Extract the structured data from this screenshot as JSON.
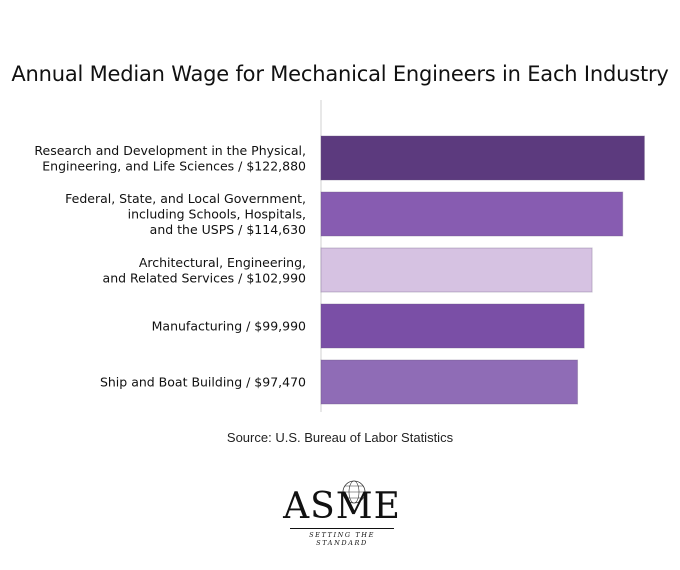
{
  "chart_data": {
    "type": "bar",
    "orientation": "horizontal",
    "title": "Annual Median Wage for Mechanical Engineers in Each Industry",
    "categories": [
      [
        "Research and Development in the Physical,",
        "Engineering, and Life Sciences / $122,880"
      ],
      [
        "Federal, State, and Local Government,",
        "including Schools, Hospitals,",
        "and the USPS / $114,630"
      ],
      [
        "Architectural, Engineering,",
        "and Related Services / $102,990"
      ],
      [
        "Manufacturing / $99,990"
      ],
      [
        "Ship and Boat Building / $97,470"
      ]
    ],
    "values": [
      122880,
      114630,
      102990,
      99990,
      97470
    ],
    "bar_colors": [
      "#5c3a7e",
      "#875cb1",
      "#d6c2e2",
      "#7a4fa6",
      "#8f6cb6"
    ],
    "xlim": [
      0,
      125000
    ],
    "grid": false,
    "legend": "none"
  },
  "source": "Source: U.S. Bureau of Labor Statistics",
  "logo": {
    "wordmark": "ASME",
    "tagline": "SETTING THE STANDARD"
  }
}
